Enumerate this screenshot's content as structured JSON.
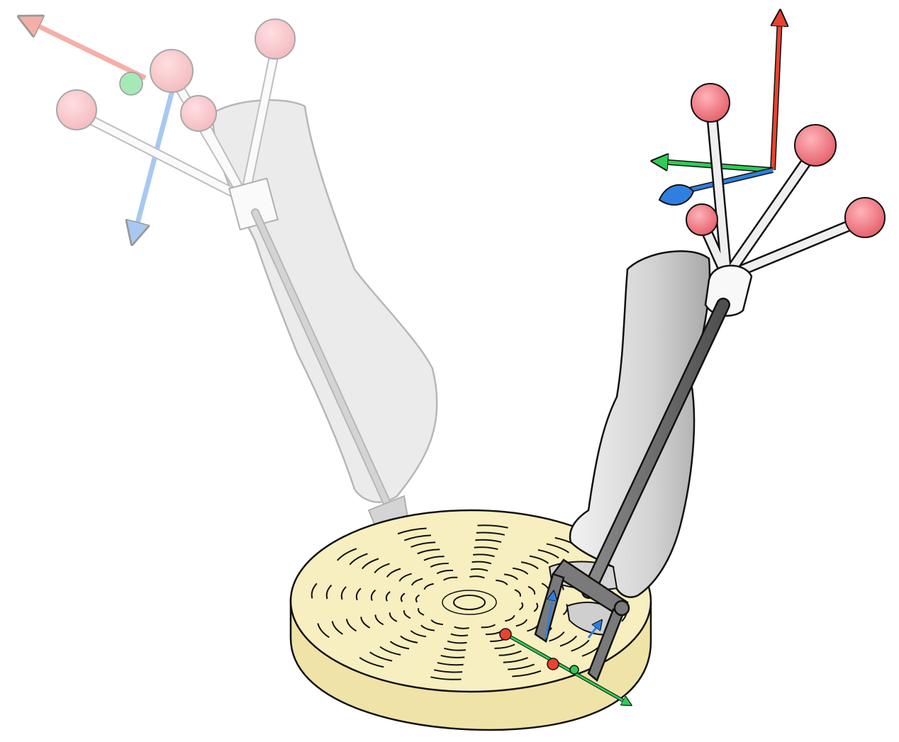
{
  "colors": {
    "background": "#ffffff",
    "axis_x": "#e8432f",
    "axis_y": "#2ecc55",
    "axis_z": "#2f7fe0",
    "marker_ball": "#ef6f7a",
    "marker_stem": "#eeeeee",
    "hand": "#d8d8d8",
    "tool": "#6f6f6f",
    "disc_top": "#f7efbf",
    "disc_side": "#efe3a8",
    "outline": "#111111"
  },
  "icons": {
    "start_pose": "coordinate-frame-icon",
    "end_pose": "coordinate-frame-icon",
    "markers": "sphere-marker-icon"
  },
  "scene": {
    "ghost_pose_visible": true,
    "spoke_count": 12,
    "hatch_marks_per_spoke": 8,
    "tool_tip_frame_visible": true
  }
}
